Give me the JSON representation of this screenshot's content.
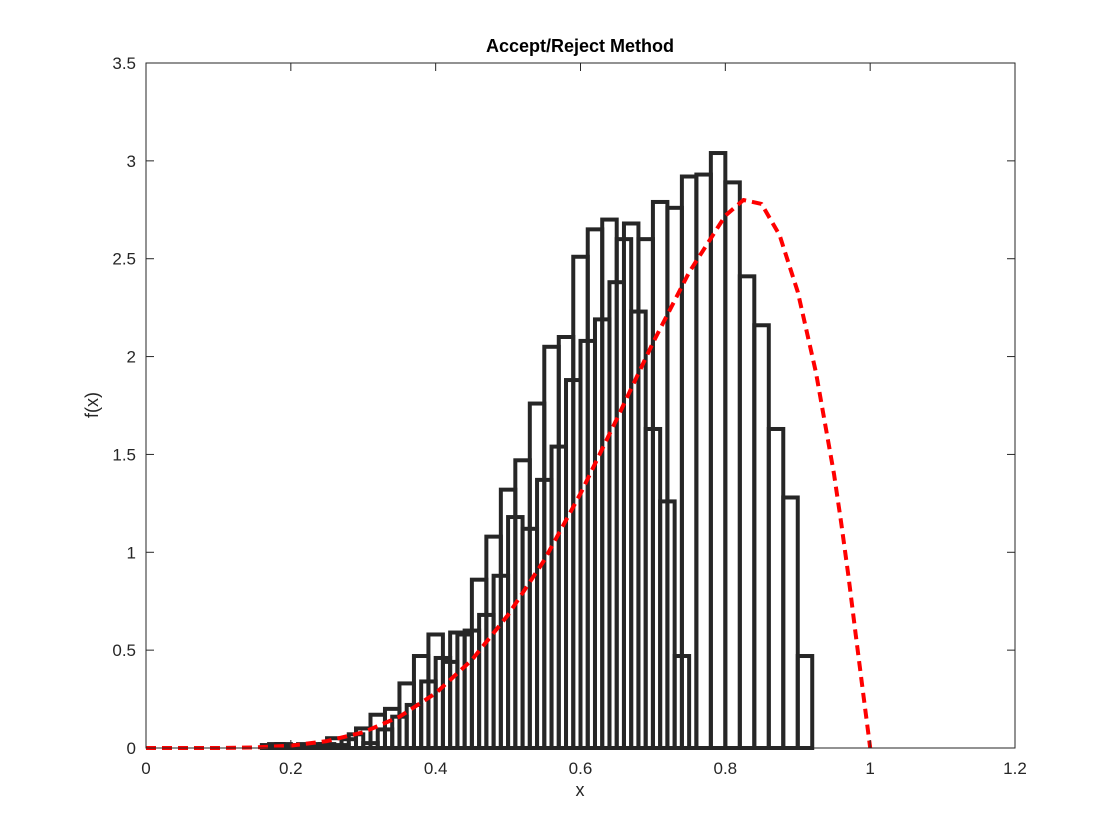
{
  "chart_data": {
    "type": "bar",
    "title": "Accept/Reject Method",
    "xlabel": "x",
    "ylabel": "f(x)",
    "xlim": [
      0,
      1.2
    ],
    "ylim": [
      0,
      3.5
    ],
    "xticks": [
      0,
      0.2,
      0.4,
      0.6,
      0.8,
      1,
      1.2
    ],
    "xtick_labels": [
      "0",
      "0.2",
      "0.4",
      "0.6",
      "0.8",
      "1",
      "1.2"
    ],
    "yticks": [
      0,
      0.5,
      1,
      1.5,
      2,
      2.5,
      3,
      3.5
    ],
    "ytick_labels": [
      "0",
      "0.5",
      "1",
      "1.5",
      "2",
      "2.5",
      "3",
      "3.5"
    ],
    "grid": false,
    "series": [
      {
        "type": "histogram",
        "edge_color": "#262626",
        "fill_color": "none",
        "bin_edges_start": 0.0,
        "bin_width": 0.02,
        "values": [
          0,
          0,
          0,
          0,
          0,
          0,
          0,
          0,
          0.015,
          0.02,
          0.015,
          0.015,
          0.02,
          0.015,
          0.07,
          0.025,
          0.095,
          0.16,
          0.22,
          0.34,
          0.46,
          0.59,
          0.6,
          0.68,
          0.88,
          1.18,
          1.12,
          1.37,
          1.54,
          1.88,
          2.08,
          2.19,
          2.38,
          2.68,
          2.6,
          2.79,
          2.76,
          2.92,
          2.93,
          3.04,
          2.89,
          2.41,
          2.16,
          1.63,
          1.28,
          0.47,
          0
        ]
      },
      {
        "type": "histogram",
        "edge_color": "#262626",
        "fill_color": "none",
        "bin_edges_start": 0.01,
        "bin_width": 0.02,
        "values": [
          0,
          0,
          0,
          0,
          0,
          0,
          0,
          0,
          0.02,
          0.01,
          0.02,
          0.02,
          0.05,
          0.045,
          0.1,
          0.17,
          0.2,
          0.33,
          0.47,
          0.58,
          0.44,
          0.58,
          0.86,
          1.08,
          1.32,
          1.47,
          1.76,
          2.05,
          2.1,
          2.51,
          2.65,
          2.7,
          2.6,
          2.23,
          1.63,
          1.26,
          0.47,
          0
        ]
      },
      {
        "type": "line",
        "style": "dashed",
        "color": "#ff0000",
        "x": [
          0,
          0.1,
          0.15,
          0.2,
          0.25,
          0.3,
          0.35,
          0.4,
          0.45,
          0.5,
          0.55,
          0.6,
          0.65,
          0.7,
          0.75,
          0.8,
          0.825,
          0.85,
          0.875,
          0.9,
          0.925,
          0.95,
          0.96,
          0.97,
          0.98,
          0.99,
          1.0
        ],
        "y": [
          0,
          0,
          0.003,
          0.012,
          0.035,
          0.08,
          0.16,
          0.28,
          0.45,
          0.68,
          0.96,
          1.3,
          1.68,
          2.07,
          2.43,
          2.72,
          2.8,
          2.78,
          2.62,
          2.33,
          1.92,
          1.4,
          1.15,
          0.88,
          0.58,
          0.29,
          0
        ]
      }
    ]
  }
}
